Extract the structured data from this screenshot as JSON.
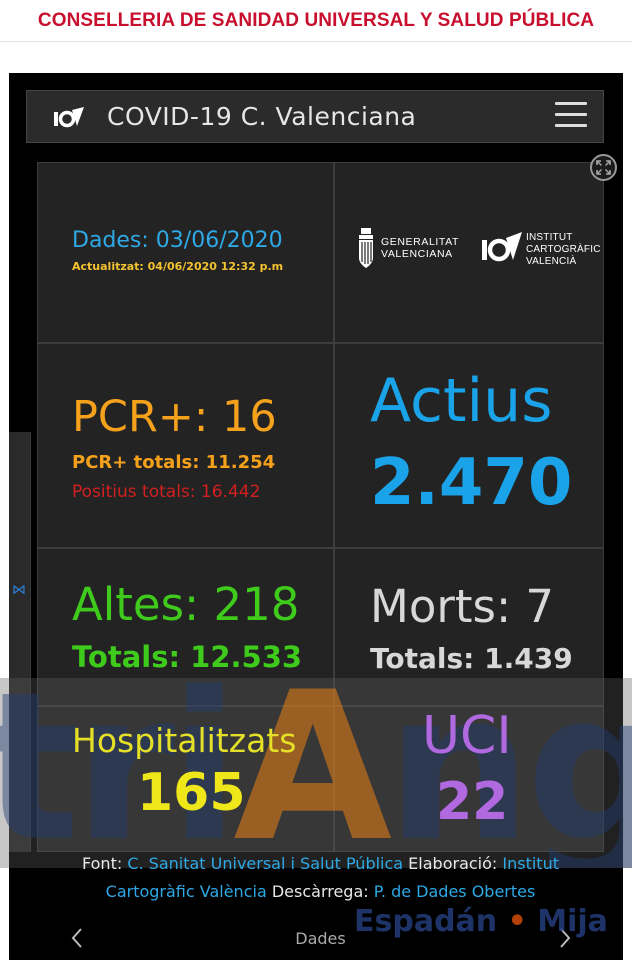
{
  "site_header": {
    "title": "CONSELLERIA DE SANIDAD UNIVERSAL Y SALUD PÚBLICA"
  },
  "appbar": {
    "title": "COVID-19 C. Valenciana",
    "logo_icon": "icv-logo-icon",
    "menu_icon": "hamburger-menu-icon"
  },
  "date_cell": {
    "date": "Dades: 03/06/2020",
    "updated": "Actualitzat: 04/06/2020 12:32 p.m"
  },
  "logos": {
    "gva": [
      "GENERALITAT",
      "VALENCIANA"
    ],
    "icv": [
      "INSTITUT",
      "CARTOGRÀFIC",
      "VALENCIÀ"
    ]
  },
  "pcr": {
    "main": "PCR+: 16",
    "totals": "PCR+ totals: 11.254",
    "positives": "Positius totals: 16.442"
  },
  "actius": {
    "label": "Actius",
    "value": "2.470"
  },
  "altes": {
    "main": "Altes: 218",
    "totals": "Totals: 12.533"
  },
  "morts": {
    "main": "Morts: 7",
    "totals": "Totals: 1.439"
  },
  "hospital": {
    "label": "Hospitalitzats",
    "value": "165"
  },
  "uci": {
    "label": "UCI",
    "value": "22"
  },
  "credits": {
    "font_label": "Font: ",
    "font_link": "C. Sanitat Universal i Salut Pública",
    "elab_label": " Elaboració: ",
    "elab_link": "Institut Cartogràfic València",
    "down_label": " Descàrrega: ",
    "down_link": "P. de Dades Obertes"
  },
  "pager": {
    "label": "Dades"
  },
  "watermark": {
    "text_a": "tri",
    "text_b": "A",
    "text_c": "ngu",
    "sub_a": "Espadán",
    "sub_dot": "•",
    "sub_b": "Mija"
  },
  "colors": {
    "header_red": "#c8102e",
    "blue": "#1aa3e8",
    "orange": "#f5a11c",
    "red": "#d21f1f",
    "green": "#3fcb1c",
    "yellow": "#f0e71a",
    "purple": "#b169e0"
  }
}
